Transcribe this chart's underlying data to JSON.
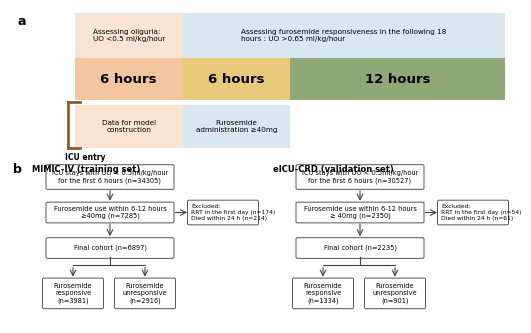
{
  "panel_a": {
    "label": "a",
    "top_label_left": "Assessing oliguria:\nUO <0.5 ml/kg/hour",
    "top_label_right": "Assessing furosemide responsiveness in the following 18\nhours : UO >0.65 ml/kg/hour",
    "bar1_label": "6 hours",
    "bar2_label": "6 hours",
    "bar3_label": "12 hours",
    "bar1_color": "#F4C6A0",
    "bar2_color": "#E8C97A",
    "bar3_color": "#8FA878",
    "top_bg_left": "#F9E3D2",
    "top_bg_right": "#D9E7F0",
    "bot_bg_left": "#F9E3D2",
    "bot_bg_right": "#D9E7F0",
    "bottom_label_left": "Data for model\nconstruction",
    "bottom_label_right": "Furosemide\nadministration ≥40mg",
    "icu_label": "ICU entry",
    "brace_color": "#8B5C2A"
  },
  "panel_b": {
    "label": "b",
    "left_title": "MIMIC-IV (training set)",
    "right_title": "eICU-CRD (validation set)",
    "left_boxes": [
      "ICU stays with UO < 0.5ml/kg/hour\nfor the first 6 hours (n=34305)",
      "Furosemide use within 6-12 hours\n≥40mg (n=7285)",
      "Final cohort (n=6897)"
    ],
    "left_bottom": [
      "Furosemide\nresponsive\n(n=3981)",
      "Furosemide\nunresponsive\n(n=2916)"
    ],
    "right_boxes": [
      "ICU stays with UO < 0.5ml/kg/hour\nfor the first 6 hours (n=30527)",
      "Furosemide use within 6-12 hours\n≥ 40mg (n=2350)",
      "Final cohort (n=2235)"
    ],
    "right_bottom": [
      "Furosemide\nresponsive\n(n=1334)",
      "Furosemide\nunresponsive\n(n=901)"
    ],
    "left_excluded": "Excluded:\nRRT in the first day (n=174)\nDied within 24 h (n=214)",
    "right_excluded": "Excluded:\nRRT in the first day (n=54)\nDied within 24 h (n=61)"
  }
}
